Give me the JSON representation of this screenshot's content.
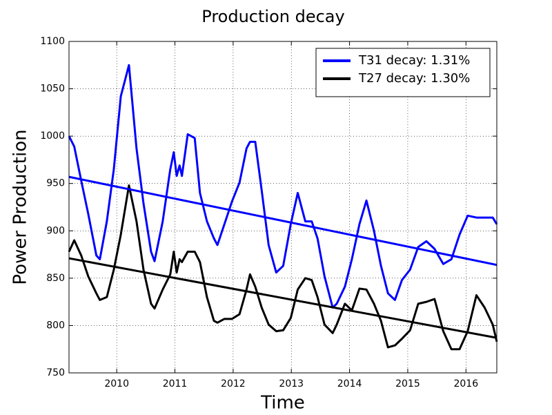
{
  "chart_data": {
    "type": "line",
    "title": "Production decay",
    "x_label": "Time",
    "y_label": "Power Production",
    "x": [
      2009.18,
      2009.27,
      2009.39,
      2009.51,
      2009.65,
      2009.71,
      2009.83,
      2009.95,
      2010.07,
      2010.21,
      2010.34,
      2010.46,
      2010.59,
      2010.65,
      2010.79,
      2010.92,
      2010.98,
      2011.03,
      2011.08,
      2011.12,
      2011.22,
      2011.34,
      2011.43,
      2011.55,
      2011.67,
      2011.73,
      2011.85,
      2011.98,
      2012.11,
      2012.23,
      2012.29,
      2012.38,
      2012.49,
      2012.61,
      2012.74,
      2012.86,
      2012.99,
      2013.11,
      2013.24,
      2013.35,
      2013.45,
      2013.57,
      2013.71,
      2013.78,
      2013.92,
      2014.04,
      2014.17,
      2014.29,
      2014.42,
      2014.54,
      2014.66,
      2014.78,
      2014.9,
      2015.04,
      2015.18,
      2015.32,
      2015.46,
      2015.61,
      2015.75,
      2015.89,
      2016.03,
      2016.18,
      2016.32,
      2016.46,
      2016.53
    ],
    "series": [
      {
        "color": "#0000ff",
        "values": [
          1000,
          989,
          953,
          918,
          874,
          870,
          910,
          965,
          1042,
          1075,
          987,
          929,
          878,
          868,
          910,
          965,
          983,
          958,
          969,
          958,
          1002,
          998,
          940,
          910,
          892,
          885,
          907,
          931,
          951,
          987,
          994,
          994,
          943,
          885,
          856,
          863,
          907,
          940,
          910,
          910,
          892,
          852,
          819,
          823,
          841,
          870,
          907,
          932,
          900,
          863,
          834,
          827,
          848,
          859,
          883,
          889,
          881,
          865,
          870,
          896,
          916,
          914,
          914,
          914,
          907
        ]
      },
      {
        "color": "#000000",
        "values": [
          878,
          890,
          874,
          852,
          834,
          827,
          830,
          859,
          896,
          948,
          910,
          859,
          823,
          818,
          838,
          854,
          878,
          856,
          870,
          867,
          878,
          878,
          867,
          830,
          805,
          803,
          807,
          807,
          812,
          838,
          854,
          841,
          819,
          801,
          794,
          795,
          808,
          838,
          850,
          848,
          830,
          801,
          792,
          801,
          823,
          816,
          839,
          838,
          823,
          805,
          777,
          779,
          786,
          795,
          823,
          825,
          828,
          794,
          775,
          775,
          794,
          832,
          819,
          801,
          783
        ]
      },
      {
        "name": "T31 decay: 1.31%",
        "color": "#0000ff",
        "x": [
          2009.18,
          2016.53
        ],
        "values": [
          957,
          864
        ]
      },
      {
        "name": "T27 decay: 1.30%",
        "color": "#000000",
        "x": [
          2009.18,
          2016.53
        ],
        "values": [
          871,
          787
        ]
      }
    ],
    "xlim": [
      2009.18,
      2016.53
    ],
    "ylim": [
      750,
      1100
    ],
    "xticks": [
      2010,
      2011,
      2012,
      2013,
      2014,
      2015,
      2016
    ],
    "yticks": [
      750,
      800,
      850,
      900,
      950,
      1000,
      1050,
      1100
    ],
    "grid": true,
    "legend": "upper right"
  }
}
